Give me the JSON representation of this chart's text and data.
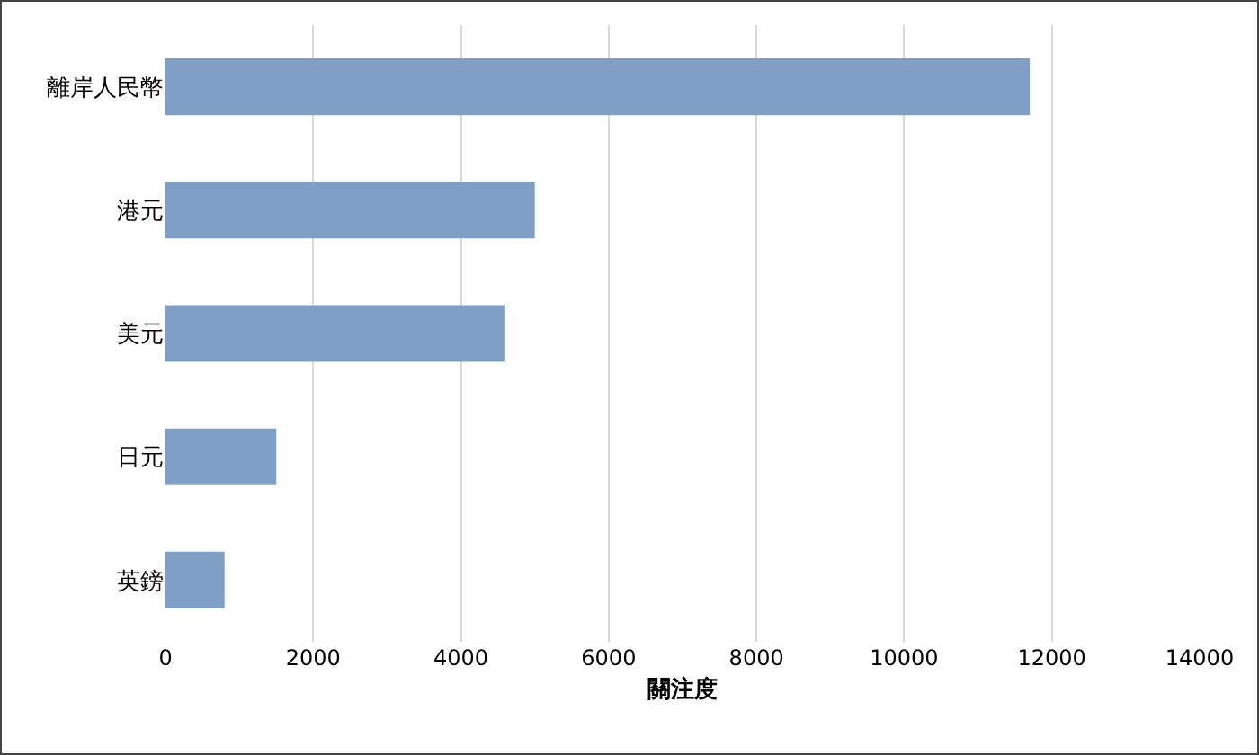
{
  "chart_data": {
    "type": "bar",
    "orientation": "horizontal",
    "categories": [
      "離岸人民幣",
      "港元",
      "美元",
      "日元",
      "英鎊"
    ],
    "values": [
      11700,
      5000,
      4600,
      1500,
      800
    ],
    "color": "#7f9fc5",
    "xlabel": "關注度",
    "xlim": [
      0,
      14000
    ],
    "xticks": [
      0,
      2000,
      4000,
      6000,
      8000,
      10000,
      12000,
      14000
    ],
    "grid": "x"
  }
}
